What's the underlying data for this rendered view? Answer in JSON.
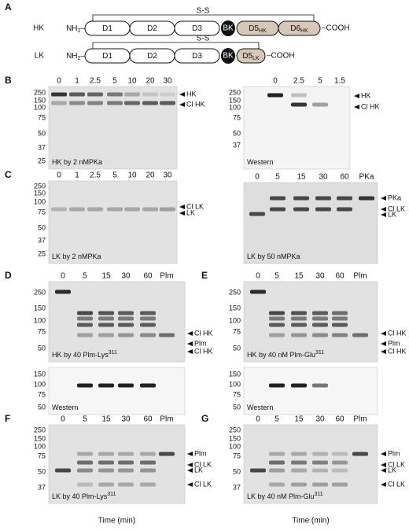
{
  "panel_a": {
    "letter": "A",
    "constructs": [
      {
        "name": "HK",
        "n_term": {
          "text": "NH",
          "sub": "2",
          "tail": "–"
        },
        "ss": "S-S",
        "domains": [
          {
            "text": "D1"
          },
          {
            "text": "D2"
          },
          {
            "text": "D3"
          },
          {
            "text": "BK"
          },
          {
            "text": "D5",
            "sub": "HK"
          },
          {
            "text": "D6",
            "sub": "HK"
          }
        ],
        "c_term": "–COOH"
      },
      {
        "name": "LK",
        "n_term": {
          "text": "NH",
          "sub": "2",
          "tail": "–"
        },
        "ss": "S-S",
        "domains": [
          {
            "text": "D1"
          },
          {
            "text": "D2"
          },
          {
            "text": "D3"
          },
          {
            "text": "BK"
          },
          {
            "text": "D5",
            "sub": "LK"
          }
        ],
        "c_term": "–COOH"
      }
    ]
  },
  "panels": [
    {
      "letter": "B",
      "gels": [
        {
          "lanes": [
            "0",
            "1",
            "2.5",
            "5",
            "10",
            "20",
            "30"
          ],
          "markers": [
            "250",
            "150",
            "100",
            "75",
            "50",
            "37",
            "25"
          ],
          "band_labels": [
            "HK",
            "Cl HK"
          ],
          "caption": {
            "text": "HK by 2 nMPKa"
          }
        },
        {
          "lanes": [
            "0",
            "2.5",
            "5",
            "1.5"
          ],
          "markers": [
            "250",
            "150",
            "100",
            "75",
            "50",
            "37"
          ],
          "band_labels": [
            "HK",
            "Cl HK"
          ],
          "caption": {
            "text": "Western"
          }
        }
      ]
    },
    {
      "letter": "C",
      "gels": [
        {
          "lanes": [
            "0",
            "1",
            "2.5",
            "5",
            "10",
            "20",
            "30"
          ],
          "markers": [
            "250",
            "150",
            "100",
            "75",
            "50",
            "37",
            "25"
          ],
          "band_labels": [
            "Cl LK",
            "LK"
          ],
          "caption": {
            "text": "LK by 2 nMPKa"
          }
        },
        {
          "lanes": [
            "0",
            "5",
            "15",
            "30",
            "60",
            "PKa"
          ],
          "band_labels": [
            "PKa",
            "Cl LK",
            "LK"
          ],
          "caption": {
            "text": "LK by 50 nMPKa"
          }
        }
      ]
    },
    {
      "letter": "D",
      "gels": [
        {
          "lanes": [
            "0",
            "5",
            "15",
            "30",
            "60",
            "Plm"
          ],
          "markers": [
            "250",
            "150",
            "100",
            "75",
            "50"
          ],
          "band_labels": [
            "Cl HK",
            "Plm",
            "Cl HK"
          ],
          "caption": {
            "text": "HK by 40 Plm-Lys",
            "sup": "311"
          },
          "western": {
            "markers": [
              "150",
              "100",
              "75",
              "50"
            ],
            "caption": {
              "text": "Western"
            }
          }
        }
      ]
    },
    {
      "letter": "E",
      "gels": [
        {
          "lanes": [
            "0",
            "5",
            "15",
            "30",
            "60",
            "Plm"
          ],
          "markers": [
            "250",
            "150",
            "100",
            "75",
            "50"
          ],
          "band_labels": [
            "Cl HK",
            "Plm",
            "Cl HK"
          ],
          "caption": {
            "text": "HK by 40 nM Plm-Glu",
            "sup": "311"
          },
          "western": {
            "markers": [
              "150",
              "100",
              "75",
              "50"
            ],
            "caption": {
              "text": "Western"
            }
          }
        }
      ]
    },
    {
      "letter": "F",
      "gels": [
        {
          "lanes": [
            "0",
            "5",
            "15",
            "30",
            "60",
            "Plm"
          ],
          "markers": [
            "250",
            "150",
            "100",
            "75",
            "50",
            "37"
          ],
          "band_labels": [
            "Plm",
            "Cl LK",
            "LK",
            "Cl LK"
          ],
          "caption": {
            "text": "LK by 40 Plm-Lys",
            "sup": "311"
          },
          "axis_label": "Time (min)"
        }
      ]
    },
    {
      "letter": "G",
      "gels": [
        {
          "lanes": [
            "0",
            "5",
            "15",
            "30",
            "60",
            "Plm"
          ],
          "markers": [
            "250",
            "150",
            "100",
            "75",
            "50",
            "37"
          ],
          "band_labels": [
            "Plm",
            "Cl LK",
            "LK",
            "Cl LK"
          ],
          "caption": {
            "text": "LK by 40 nM Plm-Glu",
            "sup": "311"
          },
          "axis_label": "Time (min)"
        }
      ]
    }
  ]
}
